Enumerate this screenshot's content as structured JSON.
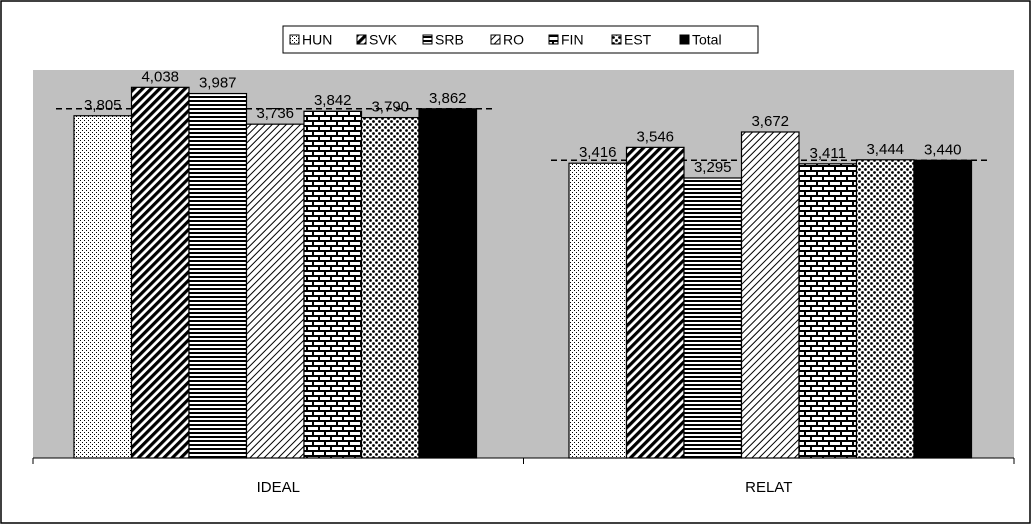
{
  "chart_data": {
    "type": "bar",
    "title": "",
    "xlabel": "",
    "ylabel": "",
    "categories": [
      "IDEAL",
      "RELAT"
    ],
    "series": [
      {
        "name": "HUN",
        "values": [
          3.805,
          3.416
        ],
        "labels": [
          "3,805",
          "3,416"
        ]
      },
      {
        "name": "SVK",
        "values": [
          4.038,
          3.546
        ],
        "labels": [
          "4,038",
          "3,546"
        ]
      },
      {
        "name": "SRB",
        "values": [
          3.987,
          3.295
        ],
        "labels": [
          "3,987",
          "3,295"
        ]
      },
      {
        "name": "RO",
        "values": [
          3.736,
          3.672
        ],
        "labels": [
          "3,736",
          "3,672"
        ]
      },
      {
        "name": "FIN",
        "values": [
          3.842,
          3.411
        ],
        "labels": [
          "3,842",
          "3,411"
        ]
      },
      {
        "name": "EST",
        "values": [
          3.79,
          3.444
        ],
        "labels": [
          "3,790",
          "3,444"
        ]
      },
      {
        "name": "Total",
        "values": [
          3.862,
          3.44
        ],
        "labels": [
          "3,862",
          "3,440"
        ]
      }
    ],
    "reference_lines": [
      3.862,
      3.44
    ],
    "ylim": [
      1,
      4.18
    ],
    "grid": false,
    "legend_position": "top-center",
    "colors": {
      "plot_background": "#c0c0c0",
      "bar_stroke": "#000000",
      "total_fill": "#000000"
    }
  }
}
